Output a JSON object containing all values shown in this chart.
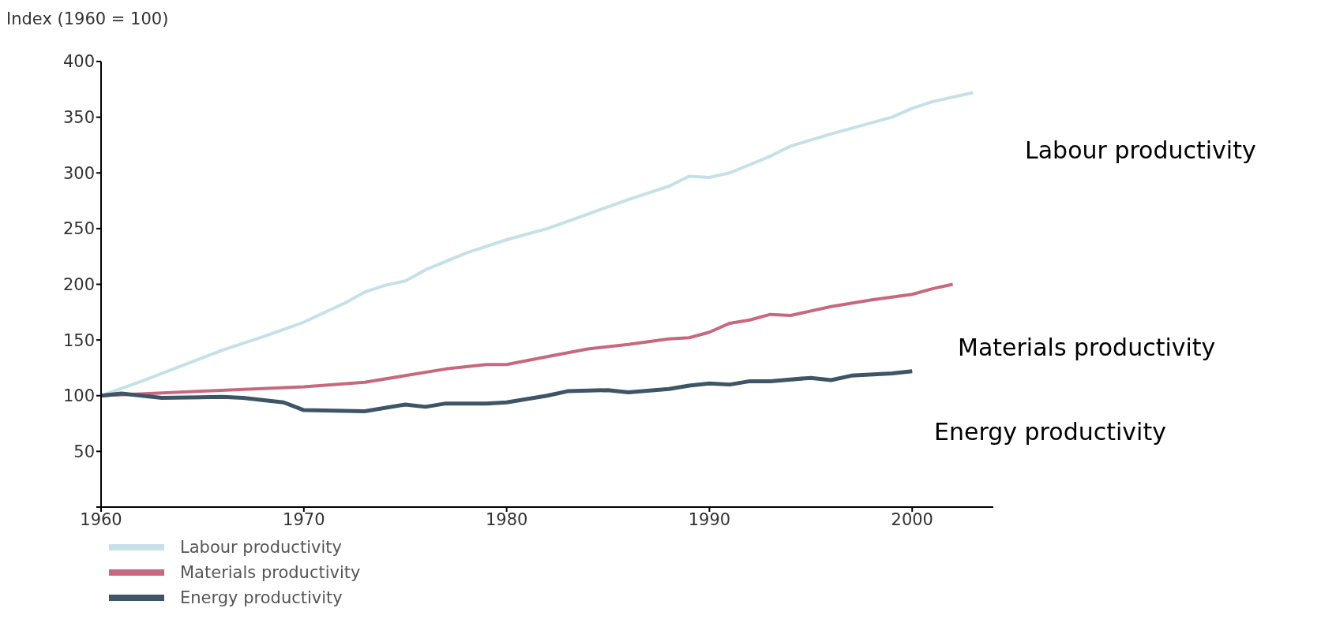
{
  "chart_data": {
    "type": "line",
    "ylabel": "Index (1960 = 100)",
    "xlim": [
      1960,
      2004
    ],
    "xticks": [
      1960,
      1970,
      1980,
      1990,
      2000
    ],
    "ylim": [
      0,
      400
    ],
    "yticks": [
      {
        "value": 0,
        "label": null
      },
      50,
      100,
      150,
      200,
      250,
      300,
      350,
      400
    ],
    "legend": "bottom left",
    "marker": "none",
    "annotations": [
      "Labour productivity",
      "Materials productivity",
      "Energy productivity"
    ],
    "series": [
      {
        "name": "Labour productivity",
        "color": "#c5e0e6",
        "x": [
          1960,
          1962,
          1964,
          1966,
          1968,
          1970,
          1972,
          1973,
          1974,
          1975,
          1976,
          1978,
          1980,
          1982,
          1984,
          1986,
          1988,
          1989,
          1990,
          1991,
          1993,
          1994,
          1996,
          1998,
          1999,
          2000,
          2001,
          2003
        ],
        "values": [
          100,
          113,
          127,
          141,
          153,
          166,
          183,
          193,
          199,
          203,
          213,
          228,
          240,
          250,
          263,
          276,
          288,
          297,
          296,
          300,
          315,
          324,
          335,
          345,
          350,
          358,
          364,
          372
        ]
      },
      {
        "name": "Materials productivity",
        "color": "#c8687e",
        "x": [
          1960,
          1965,
          1970,
          1973,
          1975,
          1977,
          1979,
          1980,
          1982,
          1984,
          1986,
          1988,
          1989,
          1990,
          1991,
          1992,
          1993,
          1994,
          1996,
          1998,
          2000,
          2001,
          2002
        ],
        "values": [
          100,
          104,
          108,
          112,
          118,
          124,
          128,
          128,
          135,
          142,
          146,
          151,
          152,
          157,
          165,
          168,
          173,
          172,
          180,
          186,
          191,
          196,
          200
        ]
      },
      {
        "name": "Energy productivity",
        "color": "#3d5566",
        "x": [
          1960,
          1961,
          1963,
          1966,
          1967,
          1969,
          1970,
          1973,
          1975,
          1976,
          1977,
          1979,
          1980,
          1982,
          1983,
          1985,
          1986,
          1988,
          1989,
          1990,
          1991,
          1992,
          1993,
          1995,
          1996,
          1997,
          1999,
          2000
        ],
        "values": [
          100,
          102,
          98,
          99,
          98,
          94,
          87,
          86,
          92,
          90,
          93,
          93,
          94,
          100,
          104,
          105,
          103,
          106,
          109,
          111,
          110,
          113,
          113,
          116,
          114,
          118,
          120,
          122
        ]
      }
    ]
  }
}
